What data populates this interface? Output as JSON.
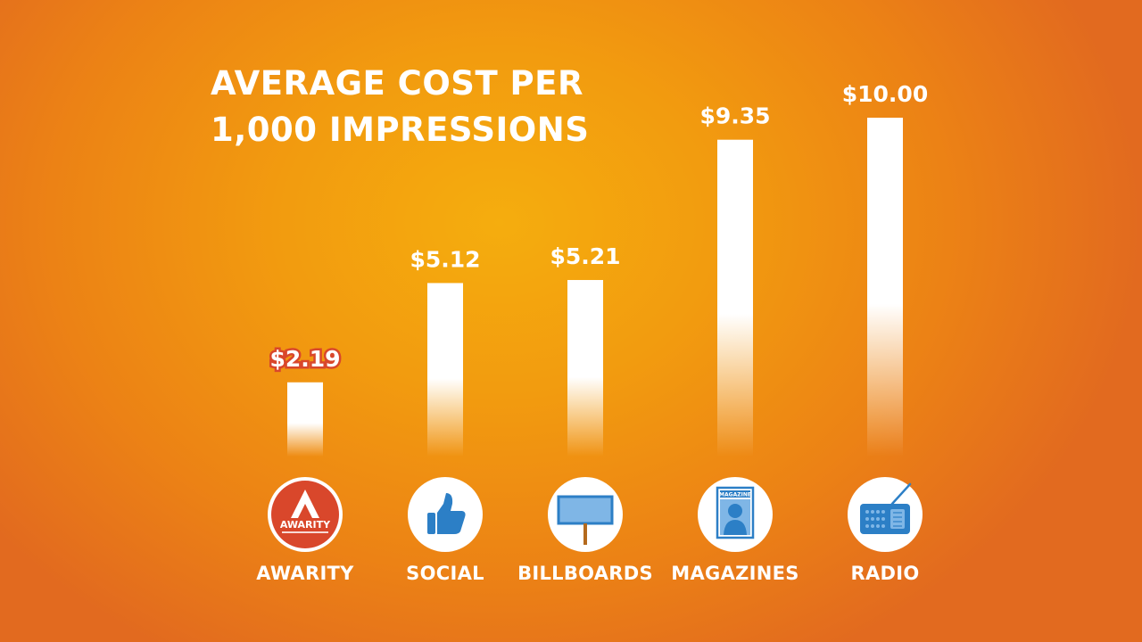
{
  "chart_data": {
    "type": "bar",
    "title_lines": [
      "AVERAGE COST PER",
      "1,000 IMPRESSIONS"
    ],
    "categories": [
      "AWARITY",
      "SOCIAL",
      "BILLBOARDS",
      "MAGAZINES",
      "RADIO"
    ],
    "values": [
      2.19,
      5.12,
      5.21,
      9.35,
      10.0
    ],
    "value_labels": [
      "$2.19",
      "$5.12",
      "$5.21",
      "$9.35",
      "$10.00"
    ],
    "highlight_index": 0,
    "icons": [
      "awarity-logo-icon",
      "thumbs-up-icon",
      "billboard-icon",
      "magazine-icon",
      "radio-icon"
    ],
    "logo_text": "AWARITY",
    "magazine_icon_text": "MAGAZINE",
    "colors": {
      "bar": "#ffffff",
      "highlight_label": "#d9472b",
      "icon_blue": "#2c7fc6",
      "awarity_red": "#d9472b",
      "background_center": "#f5ad0e",
      "background_edge": "#e26a1f"
    },
    "xlabel": "",
    "ylabel": ""
  }
}
